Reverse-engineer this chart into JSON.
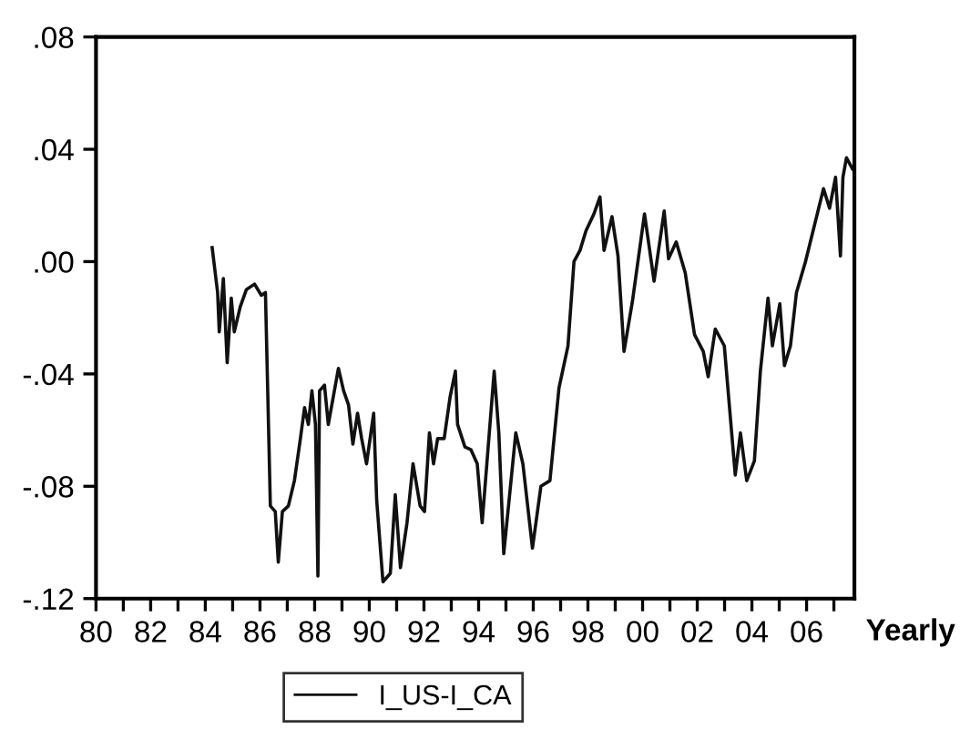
{
  "chart_data": {
    "type": "line",
    "xlabel": "Yearly",
    "xlim": [
      1980,
      2007.75
    ],
    "ylim": [
      -0.12,
      0.08
    ],
    "yticks": [
      {
        "value": -0.12,
        "label": "-.12"
      },
      {
        "value": -0.08,
        "label": "-.08"
      },
      {
        "value": -0.04,
        "label": "-.04"
      },
      {
        "value": 0.0,
        "label": ".00"
      },
      {
        "value": 0.04,
        "label": ".04"
      },
      {
        "value": 0.08,
        "label": ".08"
      }
    ],
    "xticks": [
      {
        "value": 1980,
        "label": "80"
      },
      {
        "value": 1981,
        "label": null
      },
      {
        "value": 1982,
        "label": "82"
      },
      {
        "value": 1983,
        "label": null
      },
      {
        "value": 1984,
        "label": "84"
      },
      {
        "value": 1985,
        "label": null
      },
      {
        "value": 1986,
        "label": "86"
      },
      {
        "value": 1987,
        "label": null
      },
      {
        "value": 1988,
        "label": "88"
      },
      {
        "value": 1989,
        "label": null
      },
      {
        "value": 1990,
        "label": "90"
      },
      {
        "value": 1991,
        "label": null
      },
      {
        "value": 1992,
        "label": "92"
      },
      {
        "value": 1993,
        "label": null
      },
      {
        "value": 1994,
        "label": "94"
      },
      {
        "value": 1995,
        "label": null
      },
      {
        "value": 1996,
        "label": "96"
      },
      {
        "value": 1997,
        "label": null
      },
      {
        "value": 1998,
        "label": "98"
      },
      {
        "value": 1999,
        "label": null
      },
      {
        "value": 2000,
        "label": "00"
      },
      {
        "value": 2001,
        "label": null
      },
      {
        "value": 2002,
        "label": "02"
      },
      {
        "value": 2003,
        "label": null
      },
      {
        "value": 2004,
        "label": "04"
      },
      {
        "value": 2005,
        "label": null
      },
      {
        "value": 2006,
        "label": "06"
      },
      {
        "value": 2007,
        "label": null
      }
    ],
    "grid": false,
    "legend": "bottom",
    "marker": "none",
    "line_style": "solid",
    "series": [
      {
        "name": "I_US-I_CA",
        "color": "#111111",
        "x": [
          1984.25,
          1984.45,
          1984.51,
          1984.66,
          1984.8,
          1984.95,
          1985.06,
          1985.28,
          1985.5,
          1985.8,
          1986.05,
          1986.2,
          1986.38,
          1986.56,
          1986.67,
          1986.82,
          1987.04,
          1987.26,
          1987.48,
          1987.63,
          1987.77,
          1987.9,
          1988.03,
          1988.12,
          1988.18,
          1988.36,
          1988.5,
          1988.87,
          1989.06,
          1989.24,
          1989.4,
          1989.57,
          1989.72,
          1989.9,
          1990.16,
          1990.27,
          1990.5,
          1990.77,
          1990.95,
          1991.14,
          1991.38,
          1991.6,
          1991.86,
          1992.02,
          1992.2,
          1992.35,
          1992.5,
          1992.74,
          1992.96,
          1993.15,
          1993.23,
          1993.5,
          1993.72,
          1993.95,
          1994.13,
          1994.57,
          1994.74,
          1994.92,
          1995.36,
          1995.62,
          1995.97,
          1996.28,
          1996.61,
          1996.94,
          1997.27,
          1997.49,
          1997.71,
          1997.93,
          1998.22,
          1998.44,
          1998.59,
          1998.88,
          1999.1,
          1999.32,
          1999.63,
          2000.07,
          2000.42,
          2000.79,
          2000.95,
          2001.23,
          2001.56,
          2001.9,
          2002.22,
          2002.4,
          2002.66,
          2002.99,
          2003.39,
          2003.58,
          2003.81,
          2004.09,
          2004.31,
          2004.59,
          2004.75,
          2005.02,
          2005.19,
          2005.41,
          2005.63,
          2005.96,
          2006.29,
          2006.62,
          2006.84,
          2007.06,
          2007.24,
          2007.33,
          2007.46,
          2007.68
        ],
        "values": [
          0.005,
          -0.011,
          -0.025,
          -0.006,
          -0.036,
          -0.013,
          -0.025,
          -0.016,
          -0.01,
          -0.008,
          -0.012,
          -0.011,
          -0.087,
          -0.089,
          -0.107,
          -0.089,
          -0.087,
          -0.078,
          -0.063,
          -0.052,
          -0.058,
          -0.046,
          -0.058,
          -0.112,
          -0.046,
          -0.044,
          -0.058,
          -0.038,
          -0.046,
          -0.051,
          -0.065,
          -0.054,
          -0.063,
          -0.072,
          -0.054,
          -0.085,
          -0.114,
          -0.111,
          -0.083,
          -0.109,
          -0.093,
          -0.072,
          -0.087,
          -0.089,
          -0.061,
          -0.072,
          -0.063,
          -0.063,
          -0.048,
          -0.039,
          -0.058,
          -0.066,
          -0.067,
          -0.072,
          -0.093,
          -0.039,
          -0.061,
          -0.104,
          -0.061,
          -0.072,
          -0.102,
          -0.08,
          -0.078,
          -0.045,
          -0.03,
          0.0,
          0.004,
          0.011,
          0.017,
          0.023,
          0.004,
          0.016,
          0.002,
          -0.032,
          -0.014,
          0.017,
          -0.007,
          0.018,
          0.001,
          0.007,
          -0.004,
          -0.026,
          -0.032,
          -0.041,
          -0.024,
          -0.03,
          -0.076,
          -0.061,
          -0.078,
          -0.071,
          -0.039,
          -0.013,
          -0.03,
          -0.015,
          -0.037,
          -0.03,
          -0.011,
          0.0,
          0.013,
          0.026,
          0.019,
          0.03,
          0.002,
          0.03,
          0.037,
          0.033
        ]
      }
    ]
  }
}
